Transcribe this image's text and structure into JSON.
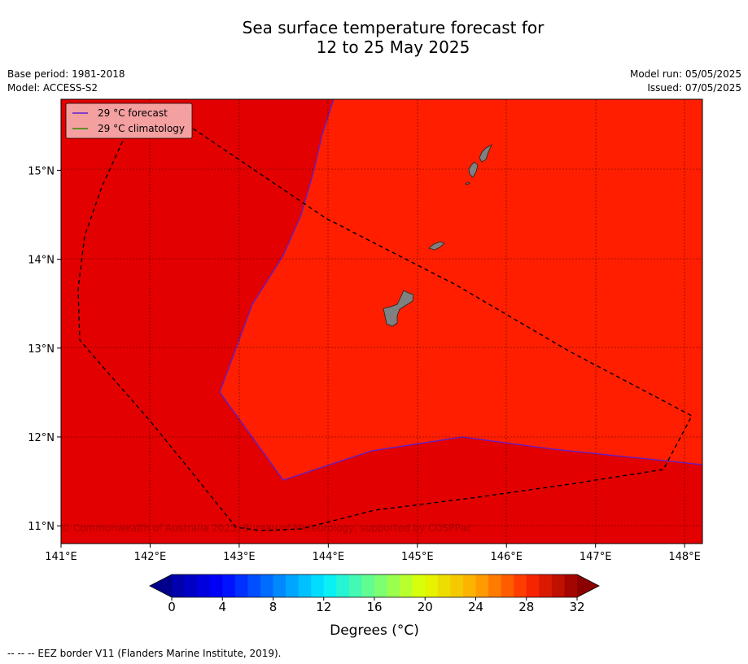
{
  "title": {
    "line1": "Sea surface temperature forecast for",
    "line2": "12 to 25 May 2025"
  },
  "meta_left": {
    "base_period": "Base period: 1981-2018",
    "model": "Model: ACCESS-S2"
  },
  "meta_right": {
    "model_run": "Model run: 05/05/2025",
    "issued": "Issued: 07/05/2025"
  },
  "map": {
    "lon_range": [
      141.0,
      148.2
    ],
    "lat_range": [
      10.8,
      15.8
    ],
    "lon_ticks": [
      "141°E",
      "142°E",
      "143°E",
      "144°E",
      "145°E",
      "146°E",
      "147°E",
      "148°E"
    ],
    "lat_ticks": [
      "11°N",
      "12°N",
      "13°N",
      "14°N",
      "15°N"
    ],
    "grid": true,
    "colors": {
      "sst_30_32": "#e30000",
      "sst_28_30": "#ff1e00",
      "land": "#808080",
      "forecast_line": "#5a1fd1",
      "climatology_line": "#2e8b00",
      "eez_line": "#000000",
      "legend_bg": "#f4a0a0"
    },
    "watermark": "© Commonwealth of Australia 2025, Bureau of Meteorology, supported by COSPPac"
  },
  "legend": {
    "forecast_label": "29 °C  forecast",
    "climatology_label": "29 °C  climatology"
  },
  "colorbar": {
    "label": "Degrees (°C)",
    "ticks": [
      "0",
      "4",
      "8",
      "12",
      "16",
      "20",
      "24",
      "28",
      "32"
    ],
    "min": 0,
    "max": 32,
    "step": 1,
    "under_color": "#00008b",
    "over_color": "#8b0000"
  },
  "footer": "--  --  -- EEZ border V11 (Flanders Marine Institute, 2019)."
}
